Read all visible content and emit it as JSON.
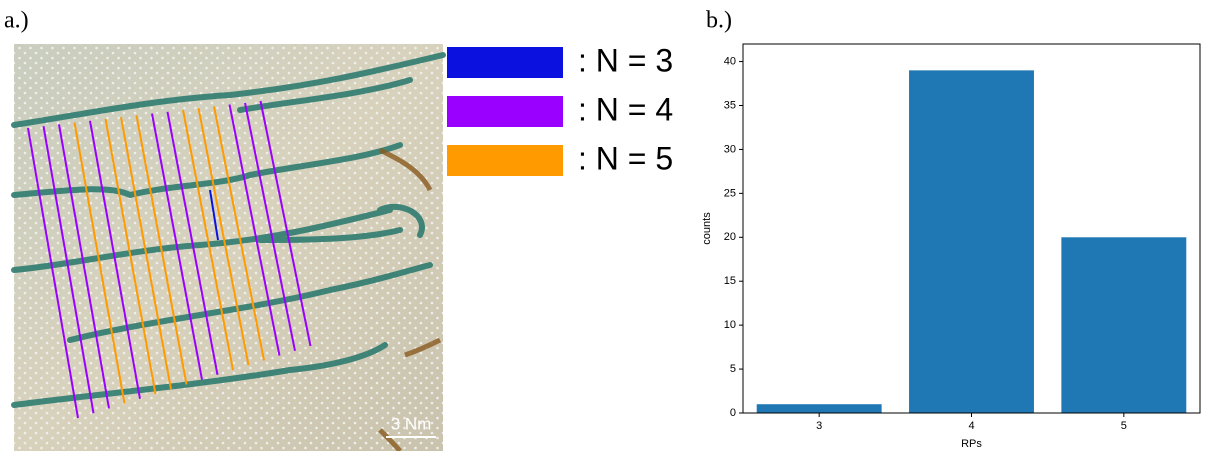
{
  "panel_a": {
    "label": "a.)",
    "scale_bar": "3 Nm",
    "legend": [
      {
        "name": ": N = 3",
        "color": "#0b12e0"
      },
      {
        "name": ": N = 4",
        "color": "#9a00ff"
      },
      {
        "name": ": N = 5",
        "color": "#ff9a00"
      }
    ]
  },
  "chart_data": {
    "type": "bar",
    "panel_label": "b.)",
    "categories": [
      "3",
      "4",
      "5"
    ],
    "values": [
      1,
      39,
      20
    ],
    "color": "#1f77b4",
    "xlabel": "RPs",
    "ylabel": "counts",
    "ylim": [
      0,
      42
    ],
    "yticks": [
      0,
      5,
      10,
      15,
      20,
      25,
      30,
      35,
      40
    ]
  }
}
